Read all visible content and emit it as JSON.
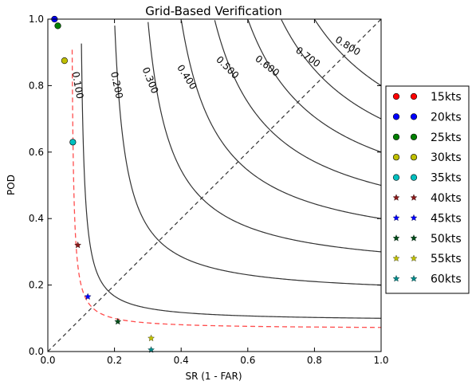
{
  "chart_data": {
    "type": "scatter",
    "title": "Grid-Based Verification",
    "xlabel": "SR (1 - FAR)",
    "ylabel": "POD",
    "xlim": [
      0.0,
      1.0
    ],
    "ylim": [
      0.0,
      1.0
    ],
    "x_ticks": [
      "0.0",
      "0.2",
      "0.4",
      "0.6",
      "0.8",
      "1.0"
    ],
    "y_ticks": [
      "0.0",
      "0.2",
      "0.4",
      "0.6",
      "0.8",
      "1.0"
    ],
    "grid": false,
    "legend_position": "outside right",
    "csi_contours": [
      {
        "label": "0.100",
        "value": 0.1
      },
      {
        "label": "0.200",
        "value": 0.2
      },
      {
        "label": "0.300",
        "value": 0.3
      },
      {
        "label": "0.400",
        "value": 0.4
      },
      {
        "label": "0.500",
        "value": 0.5
      },
      {
        "label": "0.600",
        "value": 0.6
      },
      {
        "label": "0.700",
        "value": 0.7
      },
      {
        "label": "0.800",
        "value": 0.8
      }
    ],
    "series": [
      {
        "name": "15kts",
        "marker": "circle",
        "color": "#ff0000",
        "points": []
      },
      {
        "name": "20kts",
        "marker": "circle",
        "color": "#0000ff",
        "points": [
          [
            0.02,
            1.0
          ]
        ]
      },
      {
        "name": "25kts",
        "marker": "circle",
        "color": "#008000",
        "points": [
          [
            0.03,
            0.98
          ]
        ]
      },
      {
        "name": "30kts",
        "marker": "circle",
        "color": "#bfbf00",
        "points": [
          [
            0.05,
            0.875
          ]
        ]
      },
      {
        "name": "35kts",
        "marker": "circle",
        "color": "#00bfbf",
        "points": [
          [
            0.075,
            0.63
          ]
        ]
      },
      {
        "name": "40kts",
        "marker": "star",
        "color": "#8b1a1a",
        "points": [
          [
            0.09,
            0.32
          ]
        ]
      },
      {
        "name": "45kts",
        "marker": "star",
        "color": "#0000ff",
        "points": [
          [
            0.12,
            0.165
          ]
        ]
      },
      {
        "name": "50kts",
        "marker": "star",
        "color": "#004d1a",
        "points": [
          [
            0.21,
            0.09
          ]
        ]
      },
      {
        "name": "55kts",
        "marker": "star",
        "color": "#bfbf00",
        "points": [
          [
            0.31,
            0.04
          ]
        ]
      },
      {
        "name": "60kts",
        "marker": "star",
        "color": "#008b8b",
        "points": [
          [
            0.31,
            0.005
          ]
        ]
      }
    ],
    "reference_curves": [
      {
        "kind": "diagonal",
        "style": "dashed",
        "color": "#000000"
      },
      {
        "kind": "best-fit hyperbola",
        "style": "dashed",
        "color": "#ff3333"
      }
    ]
  }
}
